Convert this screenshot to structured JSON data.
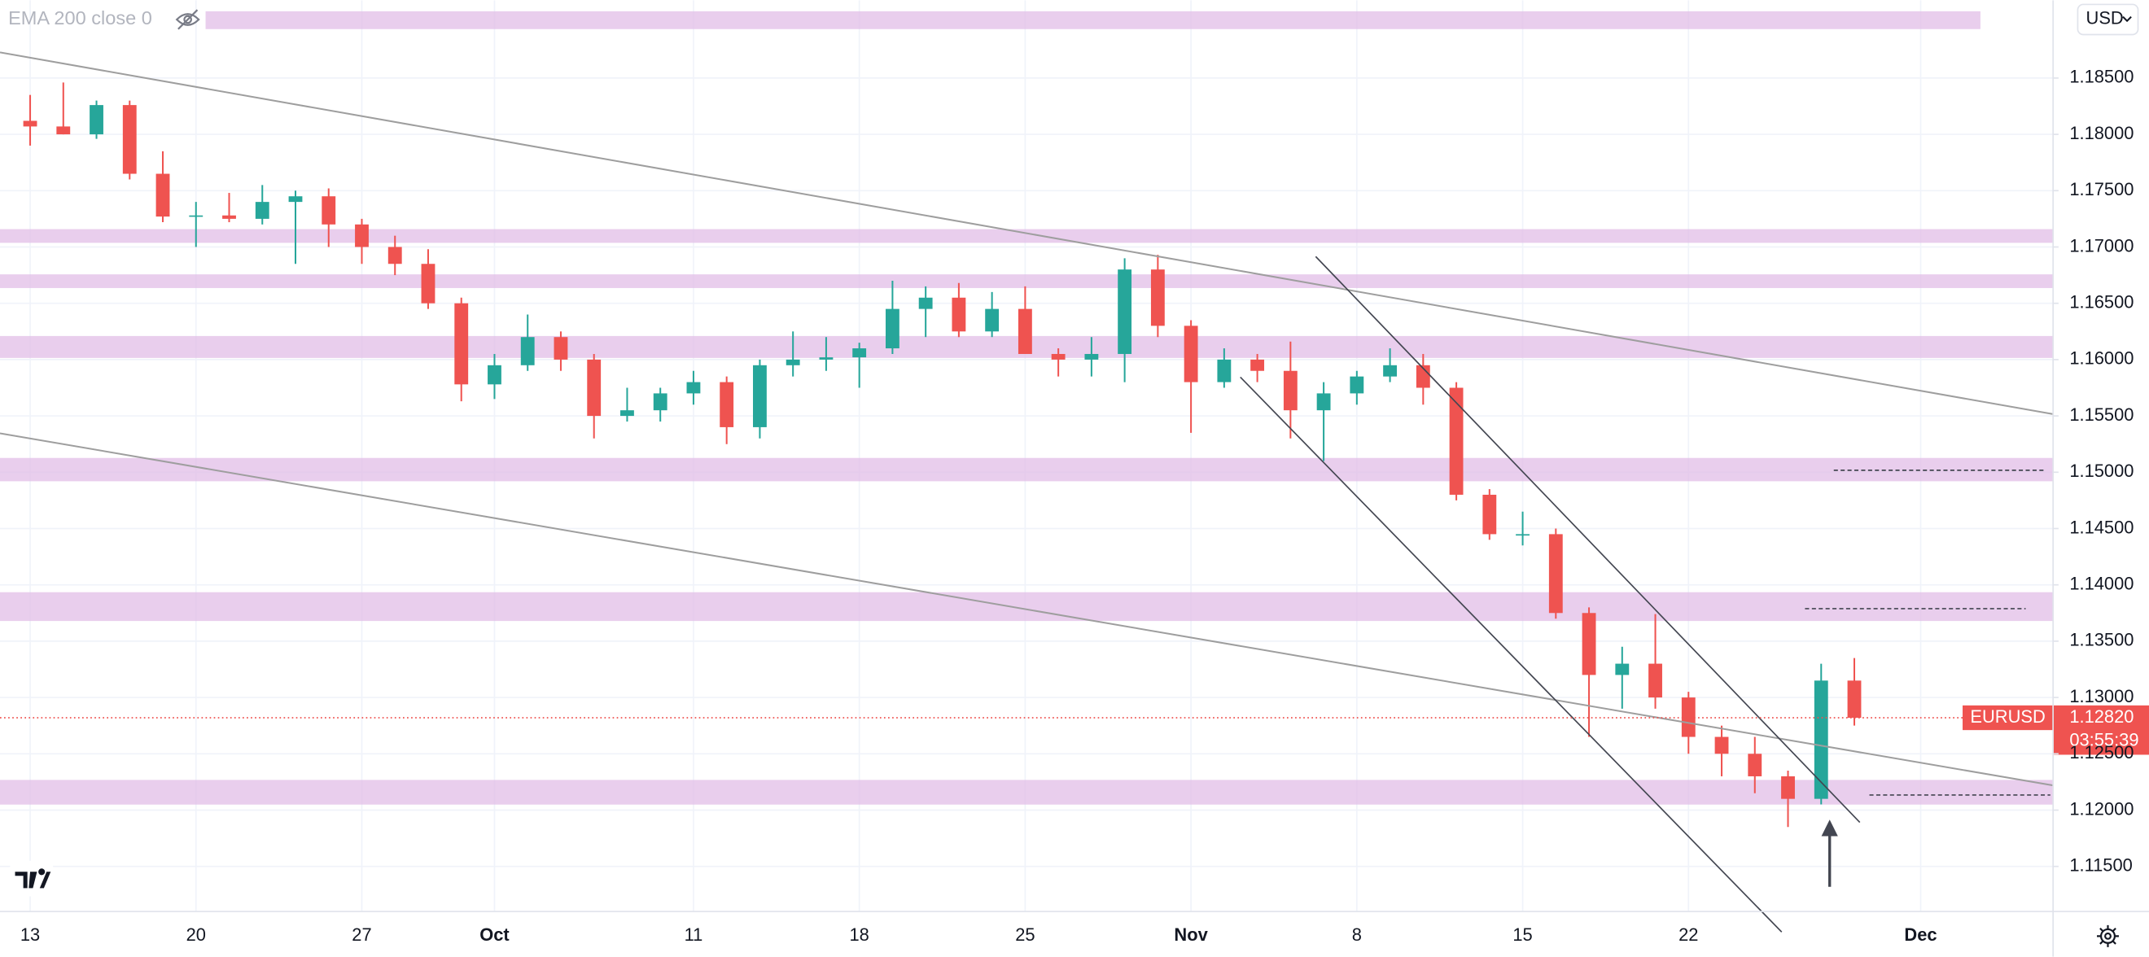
{
  "chart_data": {
    "type": "candlestick",
    "indicator": "EMA 200 close 0",
    "currency": "USD",
    "symbol": "EURUSD",
    "last_price": {
      "value": 1.1282,
      "label": "1.12820"
    },
    "countdown": "03:55:39",
    "categories": [
      "13",
      null,
      null,
      null,
      null,
      "20",
      null,
      null,
      null,
      null,
      "27",
      null,
      null,
      null,
      "Oct",
      null,
      null,
      null,
      null,
      null,
      "11",
      null,
      null,
      null,
      null,
      "18",
      null,
      null,
      null,
      null,
      "25",
      null,
      null,
      null,
      null,
      "Nov",
      null,
      null,
      null,
      null,
      "8",
      null,
      null,
      null,
      null,
      "15",
      null,
      null,
      null,
      null,
      "22",
      null,
      null,
      null,
      null,
      null,
      null,
      "Dec"
    ],
    "open": [
      1.1812,
      1.1807,
      1.18,
      1.1826,
      1.1765,
      1.1727,
      1.1728,
      1.1725,
      1.174,
      1.1745,
      1.172,
      1.17,
      1.1685,
      1.165,
      1.1578,
      1.1595,
      1.162,
      1.16,
      1.155,
      1.1555,
      1.157,
      1.158,
      1.154,
      1.1595,
      1.16,
      1.1602,
      1.161,
      1.1645,
      1.1655,
      1.1625,
      1.1645,
      1.1605,
      1.16,
      1.1605,
      1.168,
      1.163,
      1.158,
      1.16,
      1.159,
      1.1555,
      1.157,
      1.1585,
      1.1595,
      1.1575,
      1.148,
      1.1445,
      1.1445,
      1.1375,
      1.132,
      1.133,
      1.13,
      1.1265,
      1.125,
      1.123,
      1.121,
      1.1315,
      null,
      null
    ],
    "high": [
      1.1835,
      1.1846,
      1.183,
      1.183,
      1.1785,
      1.174,
      1.1748,
      1.1755,
      1.175,
      1.1752,
      1.1725,
      1.171,
      1.1698,
      1.1655,
      1.1605,
      1.164,
      1.1625,
      1.1605,
      1.1575,
      1.1575,
      1.159,
      1.1585,
      1.16,
      1.1625,
      1.162,
      1.1615,
      1.167,
      1.1665,
      1.1668,
      1.166,
      1.1665,
      1.161,
      1.162,
      1.169,
      1.1693,
      1.1635,
      1.161,
      1.1605,
      1.1616,
      1.158,
      1.159,
      1.161,
      1.1605,
      1.158,
      1.1485,
      1.1465,
      1.145,
      1.138,
      1.1345,
      1.1374,
      1.1305,
      1.1275,
      1.1265,
      1.1235,
      1.133,
      1.1335,
      null,
      null
    ],
    "low": [
      1.179,
      1.18,
      1.1796,
      1.176,
      1.1722,
      1.17,
      1.1722,
      1.172,
      1.1685,
      1.17,
      1.1685,
      1.1675,
      1.1645,
      1.1563,
      1.1565,
      1.159,
      1.159,
      1.153,
      1.1545,
      1.1545,
      1.156,
      1.1525,
      1.153,
      1.1585,
      1.159,
      1.1575,
      1.1605,
      1.162,
      1.162,
      1.162,
      1.1605,
      1.1585,
      1.1585,
      1.158,
      1.162,
      1.1535,
      1.1575,
      1.158,
      1.153,
      1.151,
      1.156,
      1.158,
      1.156,
      1.1475,
      1.144,
      1.1435,
      1.137,
      1.1265,
      1.129,
      1.129,
      1.125,
      1.123,
      1.1215,
      1.1185,
      1.1205,
      1.1275,
      null,
      null
    ],
    "close": [
      1.1807,
      1.18,
      1.1826,
      1.1765,
      1.1727,
      1.1728,
      1.1725,
      1.174,
      1.1745,
      1.172,
      1.17,
      1.1685,
      1.165,
      1.1578,
      1.1595,
      1.162,
      1.16,
      1.155,
      1.1555,
      1.157,
      1.158,
      1.154,
      1.1595,
      1.16,
      1.1602,
      1.161,
      1.1645,
      1.1655,
      1.1625,
      1.1645,
      1.1605,
      1.16,
      1.1605,
      1.168,
      1.163,
      1.158,
      1.16,
      1.159,
      1.1555,
      1.157,
      1.1585,
      1.1595,
      1.1575,
      1.148,
      1.1445,
      1.1445,
      1.1375,
      1.132,
      1.133,
      1.13,
      1.1265,
      1.125,
      1.123,
      1.121,
      1.1315,
      1.1282,
      null,
      null
    ],
    "up_color": "#26a69a",
    "down_color": "#ef5350",
    "ylim": [
      1.111,
      1.1919
    ],
    "yticks": [
      {
        "value": 1.115,
        "label": "1.11500"
      },
      {
        "value": 1.12,
        "label": "1.12000"
      },
      {
        "value": 1.125,
        "label": "1.12500"
      },
      {
        "value": 1.13,
        "label": "1.13000"
      },
      {
        "value": 1.135,
        "label": "1.13500"
      },
      {
        "value": 1.14,
        "label": "1.14000"
      },
      {
        "value": 1.145,
        "label": "1.14500"
      },
      {
        "value": 1.15,
        "label": "1.15000"
      },
      {
        "value": 1.155,
        "label": "1.15500"
      },
      {
        "value": 1.16,
        "label": "1.16000"
      },
      {
        "value": 1.165,
        "label": "1.16500"
      },
      {
        "value": 1.17,
        "label": "1.17000"
      },
      {
        "value": 1.175,
        "label": "1.17500"
      },
      {
        "value": 1.18,
        "label": "1.18000"
      },
      {
        "value": 1.185,
        "label": "1.18500"
      }
    ],
    "grid": true
  }
}
